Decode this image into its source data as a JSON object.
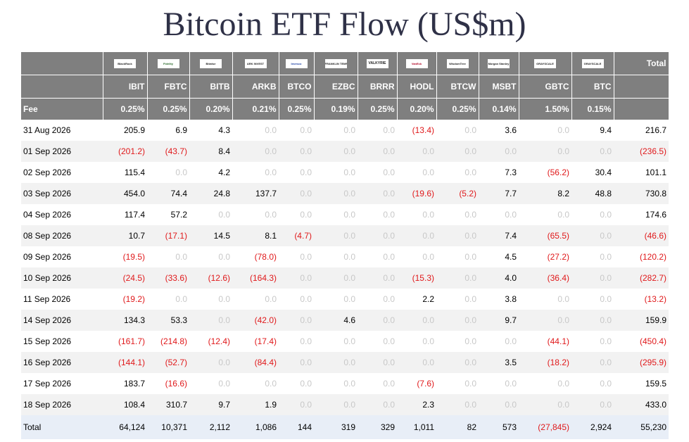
{
  "title": "Bitcoin ETF Flow (US$m)",
  "issuer_logos": [
    "BlackRock",
    "Fidelity",
    "Bitwise",
    "ARK INVEST",
    "Invesco",
    "FRANKLIN TEMPLETON",
    "VALKYRIE",
    "VanEck",
    "WisdomTree",
    "Morgan Stanley",
    "GRAYSCALE",
    "GRAYSCALE"
  ],
  "total_header": "Total",
  "tickers": [
    "IBIT",
    "FBTC",
    "BITB",
    "ARKB",
    "BTCO",
    "EZBC",
    "BRRR",
    "HODL",
    "BTCW",
    "MSBT",
    "GBTC",
    "BTC"
  ],
  "fee_label": "Fee",
  "fees": [
    "0.25%",
    "0.25%",
    "0.20%",
    "0.21%",
    "0.25%",
    "0.19%",
    "0.25%",
    "0.20%",
    "0.25%",
    "0.14%",
    "1.50%",
    "0.15%"
  ],
  "rows": [
    {
      "date": "31 Aug 2026",
      "values": [
        "205.9",
        "6.9",
        "4.3",
        "0.0",
        "0.0",
        "0.0",
        "0.0",
        "(13.4)",
        "0.0",
        "3.6",
        "0.0",
        "9.4"
      ],
      "total": "216.7"
    },
    {
      "date": "01 Sep 2026",
      "values": [
        "(201.2)",
        "(43.7)",
        "8.4",
        "0.0",
        "0.0",
        "0.0",
        "0.0",
        "0.0",
        "0.0",
        "0.0",
        "0.0",
        "0.0"
      ],
      "total": "(236.5)"
    },
    {
      "date": "02 Sep 2026",
      "values": [
        "115.4",
        "0.0",
        "4.2",
        "0.0",
        "0.0",
        "0.0",
        "0.0",
        "0.0",
        "0.0",
        "7.3",
        "(56.2)",
        "30.4"
      ],
      "total": "101.1"
    },
    {
      "date": "03 Sep 2026",
      "values": [
        "454.0",
        "74.4",
        "24.8",
        "137.7",
        "0.0",
        "0.0",
        "0.0",
        "(19.6)",
        "(5.2)",
        "7.7",
        "8.2",
        "48.8"
      ],
      "total": "730.8"
    },
    {
      "date": "04 Sep 2026",
      "values": [
        "117.4",
        "57.2",
        "0.0",
        "0.0",
        "0.0",
        "0.0",
        "0.0",
        "0.0",
        "0.0",
        "0.0",
        "0.0",
        "0.0"
      ],
      "total": "174.6"
    },
    {
      "date": "08 Sep 2026",
      "values": [
        "10.7",
        "(17.1)",
        "14.5",
        "8.1",
        "(4.7)",
        "0.0",
        "0.0",
        "0.0",
        "0.0",
        "7.4",
        "(65.5)",
        "0.0"
      ],
      "total": "(46.6)"
    },
    {
      "date": "09 Sep 2026",
      "values": [
        "(19.5)",
        "0.0",
        "0.0",
        "(78.0)",
        "0.0",
        "0.0",
        "0.0",
        "0.0",
        "0.0",
        "4.5",
        "(27.2)",
        "0.0"
      ],
      "total": "(120.2)"
    },
    {
      "date": "10 Sep 2026",
      "values": [
        "(24.5)",
        "(33.6)",
        "(12.6)",
        "(164.3)",
        "0.0",
        "0.0",
        "0.0",
        "(15.3)",
        "0.0",
        "4.0",
        "(36.4)",
        "0.0"
      ],
      "total": "(282.7)"
    },
    {
      "date": "11 Sep 2026",
      "values": [
        "(19.2)",
        "0.0",
        "0.0",
        "0.0",
        "0.0",
        "0.0",
        "0.0",
        "2.2",
        "0.0",
        "3.8",
        "0.0",
        "0.0"
      ],
      "total": "(13.2)"
    },
    {
      "date": "14 Sep 2026",
      "values": [
        "134.3",
        "53.3",
        "0.0",
        "(42.0)",
        "0.0",
        "4.6",
        "0.0",
        "0.0",
        "0.0",
        "9.7",
        "0.0",
        "0.0"
      ],
      "total": "159.9"
    },
    {
      "date": "15 Sep 2026",
      "values": [
        "(161.7)",
        "(214.8)",
        "(12.4)",
        "(17.4)",
        "0.0",
        "0.0",
        "0.0",
        "0.0",
        "0.0",
        "0.0",
        "(44.1)",
        "0.0"
      ],
      "total": "(450.4)"
    },
    {
      "date": "16 Sep 2026",
      "values": [
        "(144.1)",
        "(52.7)",
        "0.0",
        "(84.4)",
        "0.0",
        "0.0",
        "0.0",
        "0.0",
        "0.0",
        "3.5",
        "(18.2)",
        "0.0"
      ],
      "total": "(295.9)"
    },
    {
      "date": "17 Sep 2026",
      "values": [
        "183.7",
        "(16.6)",
        "0.0",
        "0.0",
        "0.0",
        "0.0",
        "0.0",
        "(7.6)",
        "0.0",
        "0.0",
        "0.0",
        "0.0"
      ],
      "total": "159.5"
    },
    {
      "date": "18 Sep 2026",
      "values": [
        "108.4",
        "310.7",
        "9.7",
        "1.9",
        "0.0",
        "0.0",
        "0.0",
        "2.3",
        "0.0",
        "0.0",
        "0.0",
        "0.0"
      ],
      "total": "433.0"
    }
  ],
  "totals": {
    "label": "Total",
    "values": [
      "64,124",
      "10,371",
      "2,112",
      "1,086",
      "144",
      "319",
      "329",
      "1,011",
      "82",
      "573",
      "(27,845)",
      "2,924"
    ],
    "total": "55,230"
  },
  "colors": {
    "header_bg": "#7f7f7f",
    "negative": "#e0191b",
    "zero": "#c8c8c8",
    "stripe": "#f2f2f2",
    "total_row_bg": "#e8eef7",
    "title": "#2f3147"
  }
}
